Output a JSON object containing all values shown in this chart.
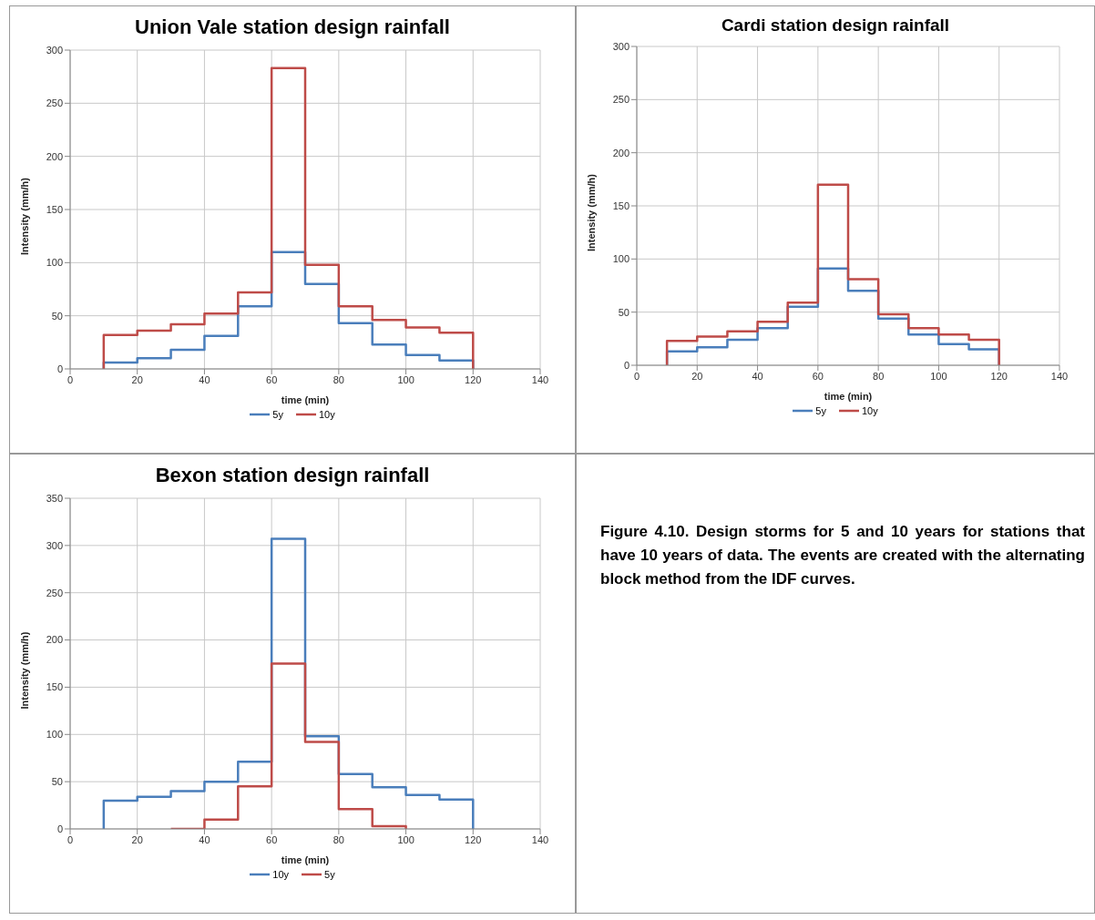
{
  "chart_data": [
    {
      "type": "step",
      "title": "Union Vale station design rainfall",
      "xlabel": "time (min)",
      "ylabel": "Intensity (mm/h)",
      "xlim": [
        0,
        140
      ],
      "xticks": [
        0,
        20,
        40,
        60,
        80,
        100,
        120,
        140
      ],
      "ylim": [
        0,
        300
      ],
      "yticks": [
        0,
        50,
        100,
        150,
        200,
        250,
        300
      ],
      "grid": true,
      "legend": "bottom",
      "marker": "none",
      "x": [
        10,
        10,
        20,
        30,
        40,
        50,
        60,
        70,
        80,
        90,
        100,
        110,
        120,
        120
      ],
      "series": [
        {
          "name": "5y",
          "color": "#4a7ebb",
          "values": [
            0,
            6,
            10,
            18,
            31,
            59,
            110,
            80,
            43,
            23,
            13,
            8,
            8,
            0
          ]
        },
        {
          "name": "10y",
          "color": "#be4b48",
          "values": [
            0,
            32,
            36,
            42,
            52,
            72,
            283,
            98,
            59,
            46,
            39,
            34,
            34,
            0
          ]
        }
      ]
    },
    {
      "type": "step",
      "title": "Cardi station design rainfall",
      "xlabel": "time (min)",
      "ylabel": "Intensity (mm/h)",
      "xlim": [
        0,
        140
      ],
      "xticks": [
        0,
        20,
        40,
        60,
        80,
        100,
        120,
        140
      ],
      "ylim": [
        0,
        300
      ],
      "yticks": [
        0,
        50,
        100,
        150,
        200,
        250,
        300
      ],
      "grid": true,
      "legend": "bottom",
      "marker": "none",
      "x": [
        10,
        10,
        20,
        30,
        40,
        50,
        60,
        70,
        80,
        90,
        100,
        110,
        120,
        120
      ],
      "series": [
        {
          "name": "5y",
          "color": "#4a7ebb",
          "values": [
            0,
            13,
            17,
            24,
            35,
            55,
            91,
            70,
            44,
            29,
            20,
            15,
            15,
            0
          ]
        },
        {
          "name": "10y",
          "color": "#be4b48",
          "values": [
            0,
            23,
            27,
            32,
            41,
            59,
            170,
            81,
            48,
            35,
            29,
            24,
            24,
            0
          ]
        }
      ]
    },
    {
      "type": "step",
      "title": "Bexon station design rainfall",
      "xlabel": "time (min)",
      "ylabel": "Intensity (mm/h)",
      "xlim": [
        0,
        140
      ],
      "xticks": [
        0,
        20,
        40,
        60,
        80,
        100,
        120,
        140
      ],
      "ylim": [
        0,
        350
      ],
      "yticks": [
        0,
        50,
        100,
        150,
        200,
        250,
        300,
        350
      ],
      "grid": true,
      "legend": "bottom",
      "marker": "none",
      "series": [
        {
          "name": "10y",
          "color": "#4a7ebb",
          "x": [
            10,
            10,
            20,
            30,
            40,
            50,
            60,
            70,
            80,
            90,
            100,
            110,
            120,
            120
          ],
          "values": [
            0,
            30,
            34,
            40,
            50,
            71,
            307,
            98,
            58,
            44,
            36,
            31,
            31,
            0
          ]
        },
        {
          "name": "5y",
          "color": "#be4b48",
          "x": [
            30,
            40,
            50,
            60,
            70,
            80,
            90,
            100,
            100
          ],
          "values": [
            0,
            10,
            45,
            175,
            92,
            21,
            3,
            3,
            0
          ]
        }
      ]
    },
    {
      "type": "other",
      "annotations": [
        "Figure 4.10. Design storms for 5 and 10 years for stations that have 10 years of data. The events are created with the alternating block method from the IDF curves."
      ]
    }
  ]
}
